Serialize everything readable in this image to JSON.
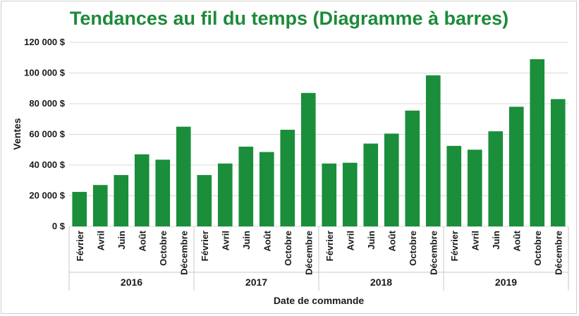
{
  "chart_data": {
    "type": "bar",
    "title": "Tendances au fil du temps (Diagramme à barres)",
    "xlabel": "Date de commande",
    "ylabel": "Ventes",
    "ylim": [
      0,
      120000
    ],
    "yticks": [
      {
        "value": 0,
        "label": "0 $"
      },
      {
        "value": 20000,
        "label": "20 000 $"
      },
      {
        "value": 40000,
        "label": "40 000 $"
      },
      {
        "value": 60000,
        "label": "60 000 $"
      },
      {
        "value": 80000,
        "label": "80 000 $"
      },
      {
        "value": 100000,
        "label": "100 000 $"
      },
      {
        "value": 120000,
        "label": "120 000 $"
      }
    ],
    "grid": true,
    "legend": "none",
    "color": "#1a8e3b",
    "groups": [
      {
        "year": "2016",
        "categories": [
          "Février",
          "Avril",
          "Juin",
          "Août",
          "Octobre",
          "Décembre"
        ],
        "values": [
          22500,
          27000,
          33500,
          47000,
          43500,
          65000
        ]
      },
      {
        "year": "2017",
        "categories": [
          "Février",
          "Avril",
          "Juin",
          "Août",
          "Octobre",
          "Décembre"
        ],
        "values": [
          33500,
          41000,
          52000,
          48500,
          63000,
          87000
        ]
      },
      {
        "year": "2018",
        "categories": [
          "Février",
          "Avril",
          "Juin",
          "Août",
          "Octobre",
          "Décembre"
        ],
        "values": [
          41000,
          41500,
          54000,
          60500,
          75500,
          98500
        ]
      },
      {
        "year": "2019",
        "categories": [
          "Février",
          "Avril",
          "Juin",
          "Août",
          "Octobre",
          "Décembre"
        ],
        "values": [
          52500,
          50000,
          62000,
          78000,
          109000,
          83000
        ]
      }
    ]
  }
}
